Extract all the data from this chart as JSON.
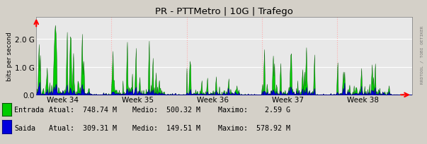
{
  "title": "PR - PTTMetro | 10G | Trafego",
  "ylabel": "bits per second",
  "bg_color": "#d4d0c8",
  "plot_bg_color": "#e8e8e8",
  "grid_color_h": "#ffffff",
  "grid_color_v": "#ffaaaa",
  "entrada_color": "#00cc00",
  "entrada_edge_color": "#005500",
  "saida_color": "#0000dd",
  "saida_edge_color": "#000088",
  "ylim": [
    0,
    2800000000.0
  ],
  "yticks": [
    0,
    1000000000.0,
    2000000000.0
  ],
  "weeks": [
    "Week 34",
    "Week 35",
    "Week 36",
    "Week 37",
    "Week 38"
  ],
  "watermark": "RRDTOOL / TOBI OETIKER",
  "num_points": 600,
  "seed": 7
}
